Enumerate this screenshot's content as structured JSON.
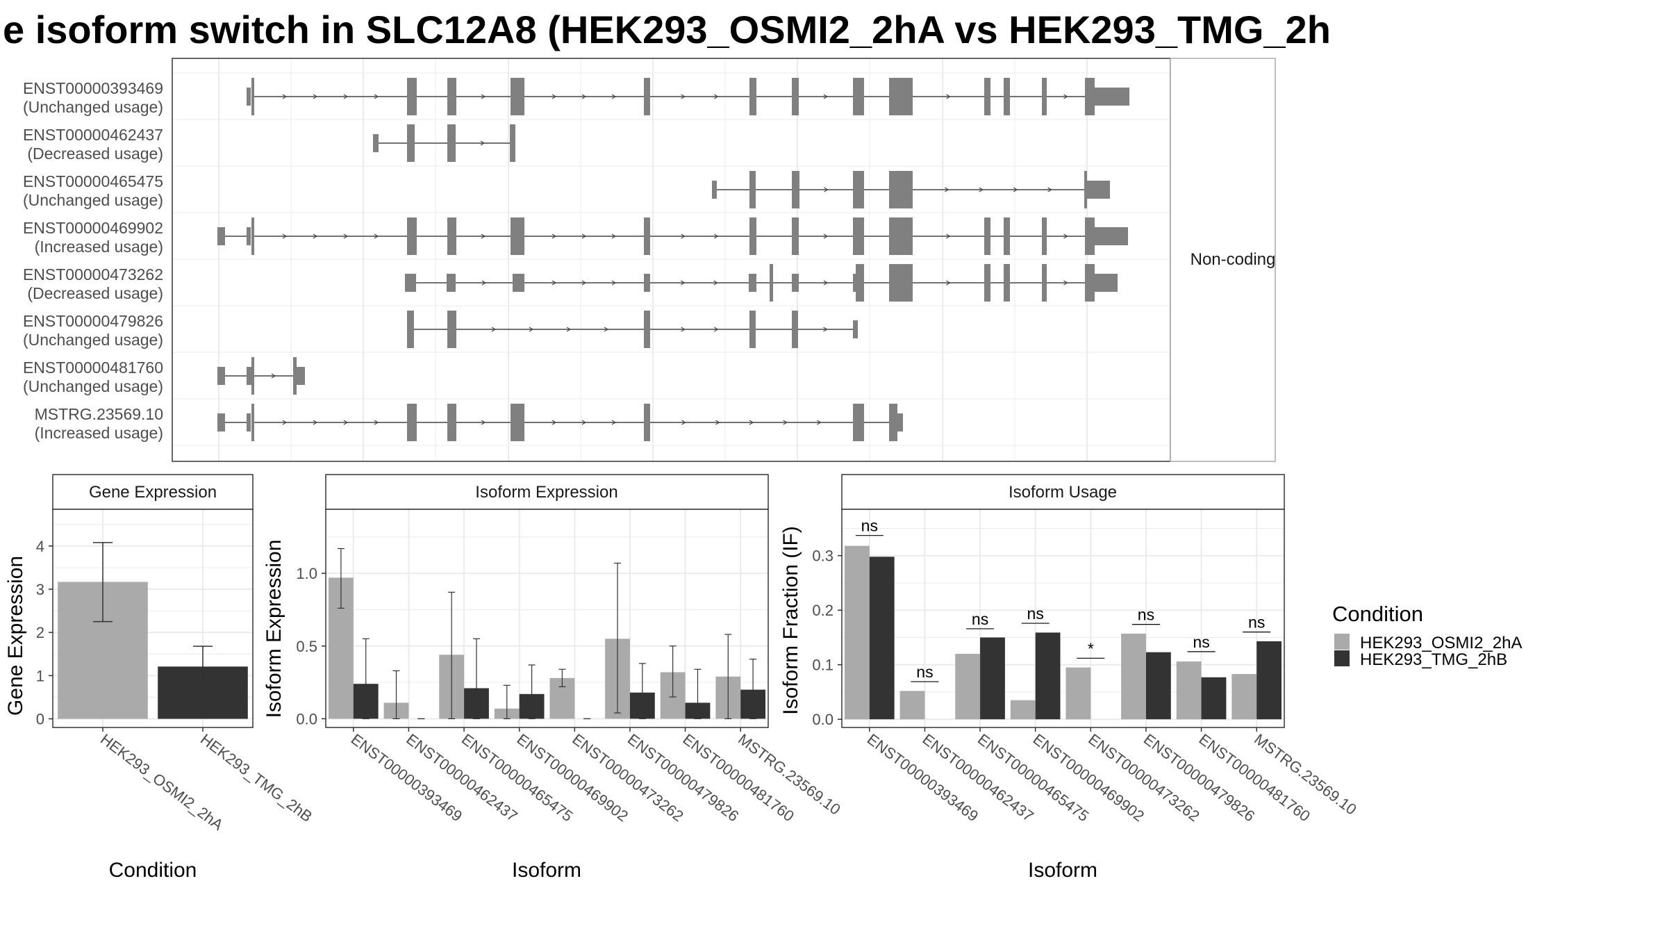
{
  "title": "e isoform switch in SLC12A8 (HEK293_OSMI2_2hA vs HEK293_TMG_2h",
  "colors": {
    "exon": "#808080",
    "condition_a": "#aaaaaa",
    "condition_b": "#333333",
    "grid": "#ebebeb",
    "panel_border": "#333333",
    "strip_fill": "#ffffff"
  },
  "structure": {
    "facet_label": "Non-coding",
    "transcripts": [
      {
        "id": "ENST00000393469",
        "usage": "(Unchanged usage)"
      },
      {
        "id": "ENST00000462437",
        "usage": "(Decreased usage)"
      },
      {
        "id": "ENST00000465475",
        "usage": "(Unchanged usage)"
      },
      {
        "id": "ENST00000469902",
        "usage": "(Increased usage)"
      },
      {
        "id": "ENST00000473262",
        "usage": "(Decreased usage)"
      },
      {
        "id": "ENST00000479826",
        "usage": "(Unchanged usage)"
      },
      {
        "id": "ENST00000481760",
        "usage": "(Unchanged usage)"
      },
      {
        "id": "MSTRG.23569.10",
        "usage": "(Increased usage)"
      }
    ]
  },
  "legend": {
    "title": "Condition",
    "items": [
      "HEK293_OSMI2_2hA",
      "HEK293_TMG_2hB"
    ]
  },
  "chart_data": [
    {
      "type": "bar",
      "title": "Gene Expression",
      "xlabel": "Condition",
      "ylabel": "Gene Expression",
      "categories": [
        "HEK293_OSMI2_2hA",
        "HEK293_TMG_2hB"
      ],
      "values": [
        3.17,
        1.21
      ],
      "error_low": [
        2.25,
        0.75
      ],
      "error_high": [
        4.08,
        1.68
      ],
      "ylim": [
        -0.2,
        4.85
      ],
      "yticks": [
        0,
        1,
        2,
        3,
        4
      ],
      "grid": true
    },
    {
      "type": "bar",
      "title": "Isoform Expression",
      "xlabel": "Isoform",
      "ylabel": "Isoform Expression",
      "categories": [
        "ENST00000393469",
        "ENST00000462437",
        "ENST00000465475",
        "ENST00000469902",
        "ENST00000473262",
        "ENST00000479826",
        "ENST00000481760",
        "MSTRG.23569.10"
      ],
      "series": [
        {
          "name": "HEK293_OSMI2_2hA",
          "values": [
            0.97,
            0.11,
            0.44,
            0.07,
            0.28,
            0.55,
            0.32,
            0.29
          ],
          "error_low": [
            0.76,
            0.0,
            0.0,
            0.0,
            0.22,
            0.04,
            0.15,
            0.0
          ],
          "error_high": [
            1.17,
            0.33,
            0.87,
            0.23,
            0.34,
            1.07,
            0.5,
            0.58
          ]
        },
        {
          "name": "HEK293_TMG_2hB",
          "values": [
            0.24,
            0.0,
            0.21,
            0.17,
            0.0,
            0.18,
            0.11,
            0.2
          ],
          "error_low": [
            0.0,
            0.0,
            0.0,
            0.0,
            0.0,
            0.0,
            0.0,
            0.0
          ],
          "error_high": [
            0.55,
            0.0,
            0.55,
            0.37,
            0.0,
            0.38,
            0.34,
            0.41
          ]
        }
      ],
      "ylim": [
        -0.06,
        1.44
      ],
      "yticks": [
        0.0,
        0.5,
        1.0
      ],
      "ytick_labels": [
        "0.0",
        "0.5",
        "1.0"
      ],
      "grid": true
    },
    {
      "type": "bar",
      "title": "Isoform Usage",
      "xlabel": "Isoform",
      "ylabel": "Isoform Fraction (IF)",
      "categories": [
        "ENST00000393469",
        "ENST00000462437",
        "ENST00000465475",
        "ENST00000469902",
        "ENST00000473262",
        "ENST00000479826",
        "ENST00000481760",
        "MSTRG.23569.10"
      ],
      "series": [
        {
          "name": "HEK293_OSMI2_2hA",
          "values": [
            0.318,
            0.052,
            0.12,
            0.035,
            0.095,
            0.157,
            0.106,
            0.083
          ]
        },
        {
          "name": "HEK293_TMG_2hB",
          "values": [
            0.298,
            0.0,
            0.15,
            0.159,
            0.0,
            0.123,
            0.077,
            0.143
          ]
        }
      ],
      "significance": [
        "ns",
        "ns",
        "ns",
        "ns",
        "*",
        "ns",
        "ns",
        "ns"
      ],
      "significance_level": [
        0.337,
        0.069,
        0.166,
        0.176,
        0.112,
        0.174,
        0.124,
        0.16
      ],
      "ylim": [
        -0.015,
        0.385
      ],
      "yticks": [
        0.0,
        0.1,
        0.2,
        0.3
      ],
      "ytick_labels": [
        "0.0",
        "0.1",
        "0.2",
        "0.3"
      ],
      "legend": "right",
      "grid": true
    }
  ]
}
